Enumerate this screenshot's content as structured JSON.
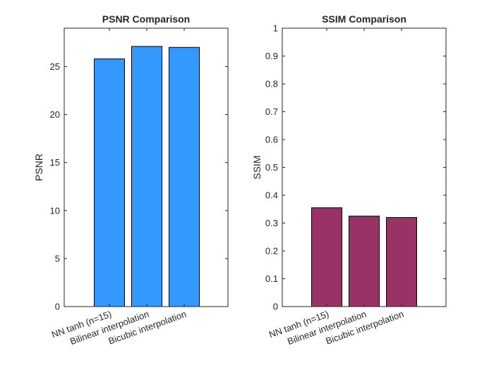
{
  "chart_data": [
    {
      "type": "bar",
      "title": "PSNR Comparison",
      "xlabel": "",
      "ylabel": "PSNR",
      "categories": [
        "NN tanh (n=15)",
        "Bilinear interpolation",
        "Bicubic interpolation"
      ],
      "values": [
        25.8,
        27.1,
        27.0
      ],
      "ylim": [
        0,
        29
      ],
      "yticks": [
        "0",
        "5",
        "10",
        "15",
        "20",
        "25"
      ],
      "ytick_values": [
        0,
        5,
        10,
        15,
        20,
        25
      ],
      "grid": false,
      "color": "#3399ff"
    },
    {
      "type": "bar",
      "title": "SSIM Comparison",
      "xlabel": "",
      "ylabel": "SSIM",
      "categories": [
        "NN tanh (n=15)",
        "Bilinear interpolation",
        "Bicubic interpolation"
      ],
      "values": [
        0.355,
        0.325,
        0.32
      ],
      "ylim": [
        0,
        1
      ],
      "yticks": [
        "0",
        "0.1",
        "0.2",
        "0.3",
        "0.4",
        "0.5",
        "0.6",
        "0.7",
        "0.8",
        "0.9",
        "1"
      ],
      "ytick_values": [
        0,
        0.1,
        0.2,
        0.3,
        0.4,
        0.5,
        0.6,
        0.7,
        0.8,
        0.9,
        1
      ],
      "grid": false,
      "color": "#993366"
    }
  ]
}
